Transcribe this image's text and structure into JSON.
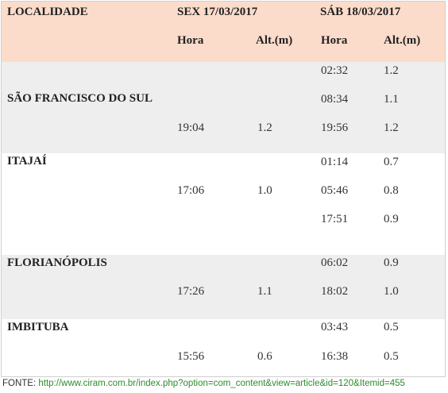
{
  "header": {
    "locality": "LOCALIDADE",
    "day1": "SEX 17/03/2017",
    "day2": "SÁB 18/03/2017",
    "hora": "Hora",
    "alt": "Alt.(m)"
  },
  "rows": [
    {
      "name": "SÃO FRANCISCO DO SUL",
      "day1": [
        {
          "hora": "19:04",
          "alt": "1.2"
        }
      ],
      "day2": [
        {
          "hora": "02:32",
          "alt": "1.2"
        },
        {
          "hora": "08:34",
          "alt": "1.1"
        },
        {
          "hora": "19:56",
          "alt": "1.2"
        }
      ]
    },
    {
      "name": "ITAJAÍ",
      "day1": [
        {
          "hora": "17:06",
          "alt": "1.0"
        }
      ],
      "day2": [
        {
          "hora": "01:14",
          "alt": "0.7"
        },
        {
          "hora": "05:46",
          "alt": "0.8"
        },
        {
          "hora": "17:51",
          "alt": "0.9"
        }
      ]
    },
    {
      "name": "FLORIANÓPOLIS",
      "day1": [
        {
          "hora": "17:26",
          "alt": "1.1"
        }
      ],
      "day2": [
        {
          "hora": "06:02",
          "alt": "0.9"
        },
        {
          "hora": "18:02",
          "alt": "1.0"
        }
      ]
    },
    {
      "name": "IMBITUBA",
      "day1": [
        {
          "hora": "15:56",
          "alt": "0.6"
        }
      ],
      "day2": [
        {
          "hora": "03:43",
          "alt": "0.5"
        },
        {
          "hora": "16:38",
          "alt": "0.5"
        }
      ]
    }
  ],
  "source": {
    "label": "FONTE:",
    "url": "http://www.ciram.com.br/index.php?option=com_content&view=article&id=120&Itemid=455"
  }
}
